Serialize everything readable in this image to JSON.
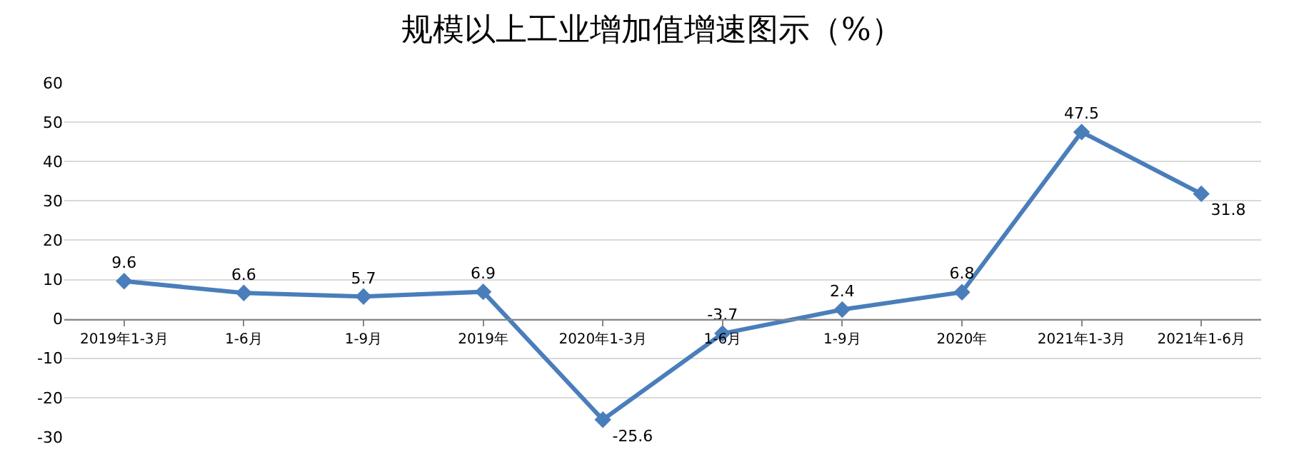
{
  "chart_data": {
    "type": "line",
    "title": "规模以上工业增加值增速图示（%）",
    "categories": [
      "2019年1-3月",
      "1-6月",
      "1-9月",
      "2019年",
      "2020年1-3月",
      "1-6月",
      "1-9月",
      "2020年",
      "2021年1-3月",
      "2021年1-6月"
    ],
    "series": [
      {
        "color": "#4a7ebb",
        "values": [
          9.6,
          6.6,
          5.7,
          6.9,
          -25.6,
          -3.7,
          2.4,
          6.8,
          47.5,
          31.8
        ]
      }
    ],
    "ylim": [
      -30,
      60
    ],
    "yticks": [
      -30,
      -20,
      -10,
      0,
      10,
      20,
      30,
      40,
      50,
      60
    ],
    "grid": "y",
    "marker": "diamond",
    "line_style": "solid",
    "data_labels": true
  }
}
